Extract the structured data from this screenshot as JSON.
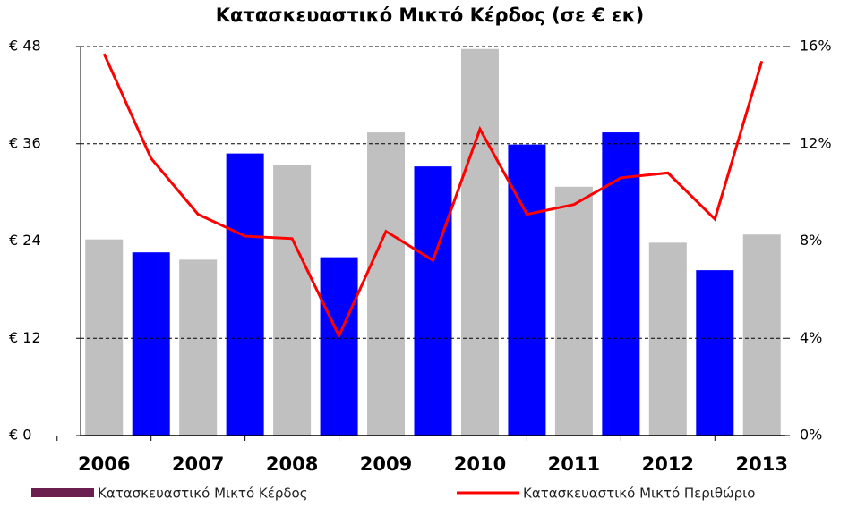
{
  "chart_data": {
    "type": "bar_line",
    "title": "Κατασκευαστικό Μικτό Κέρδος (σε € εκ)",
    "categories": [
      "2006",
      null,
      "2007",
      null,
      "2008",
      null,
      "2009",
      null,
      "2010",
      null,
      "2011",
      null,
      "2012",
      null,
      "2013"
    ],
    "series": [
      {
        "name": "Κατασκευαστικό Μικτό Κέρδος",
        "type": "bar",
        "color": "#6b1f4f",
        "colors": [
          "#c0c0c0",
          "#0000ff",
          "#c0c0c0",
          "#0000ff",
          "#c0c0c0",
          "#0000ff",
          "#c0c0c0",
          "#0000ff",
          "#c0c0c0",
          "#0000ff",
          "#c0c0c0",
          "#0000ff",
          "#c0c0c0",
          "#0000ff",
          "#c0c0c0"
        ],
        "values": [
          24.2,
          22.6,
          21.7,
          34.8,
          33.4,
          22.0,
          37.4,
          33.2,
          47.7,
          35.9,
          30.7,
          37.4,
          23.8,
          20.4,
          24.8
        ]
      },
      {
        "name": "Κατασκευαστικό Μικτό Περιθώριο",
        "type": "line",
        "axis": "y2",
        "color": "#ff0000",
        "values": [
          15.7,
          11.4,
          9.1,
          8.2,
          8.1,
          4.1,
          8.4,
          7.2,
          12.6,
          9.1,
          9.5,
          10.6,
          10.8,
          8.9,
          15.4
        ]
      }
    ],
    "ylim": [
      0,
      48
    ],
    "yticks": [
      {
        "value": 0,
        "label": "€ 0"
      },
      {
        "value": 12,
        "label": "€ 12"
      },
      {
        "value": 24,
        "label": "€ 24"
      },
      {
        "value": 36,
        "label": "€ 36"
      },
      {
        "value": 48,
        "label": "€ 48"
      }
    ],
    "y2lim": [
      0,
      16
    ],
    "y2ticks": [
      {
        "value": 0,
        "label": "0%"
      },
      {
        "value": 4,
        "label": "4%"
      },
      {
        "value": 8,
        "label": "8%"
      },
      {
        "value": 12,
        "label": "12%"
      },
      {
        "value": 16,
        "label": "16%"
      }
    ],
    "grid": true,
    "legend": "bottom"
  }
}
